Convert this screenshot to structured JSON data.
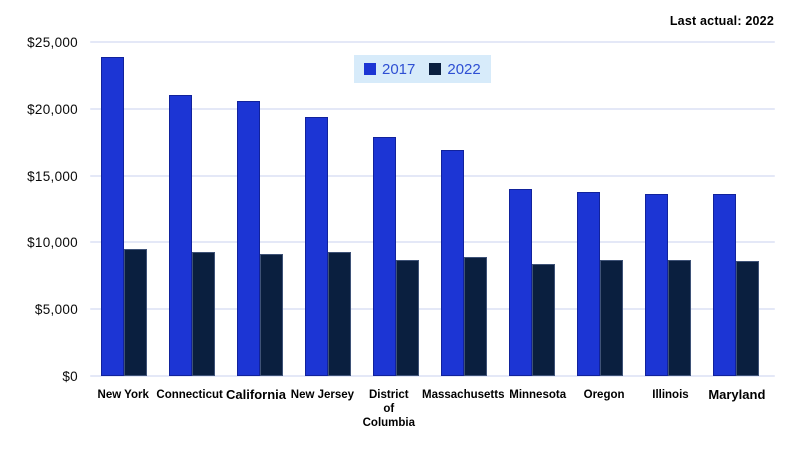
{
  "colors": {
    "series_2017": "#1c35d4",
    "series_2017_edge": "rgba(10,18,110,0.55)",
    "series_2022": "#0a1f3f",
    "series_2022_edge": "rgba(96,116,156,0.6)",
    "legend_background": "#d7ebfa",
    "legend_text": "#2e4fd3",
    "gridline": "#e4e8f7",
    "axis_text": "#0b0b0b"
  },
  "chart_data": {
    "type": "bar",
    "annotation": "Last actual: 2022",
    "categories": [
      "New York",
      "Connecticut",
      "California",
      "New Jersey",
      "District of Columbia",
      "Massachusetts",
      "Minnesota",
      "Oregon",
      "Illinois",
      "Maryland"
    ],
    "category_display": [
      "New York",
      "Connecticut",
      "California",
      "New Jersey",
      "District\nof\nColumbia",
      "Massachusetts",
      "Minnesota",
      "Oregon",
      "Illinois",
      "Maryland"
    ],
    "series": [
      {
        "name": "2017",
        "color": "#1c35d4",
        "edge": "rgba(10,18,110,0.55)",
        "values": [
          23900,
          21000,
          20600,
          19400,
          17900,
          16900,
          14000,
          13800,
          13600,
          13600
        ]
      },
      {
        "name": "2022",
        "color": "#0a1f3f",
        "edge": "rgba(96,116,156,0.6)",
        "values": [
          9500,
          9300,
          9100,
          9300,
          8700,
          8900,
          8400,
          8700,
          8700,
          8600
        ]
      }
    ],
    "ylim": [
      0,
      25000
    ],
    "yticks": [
      {
        "value": 0,
        "label": "$0"
      },
      {
        "value": 5000,
        "label": "$5,000"
      },
      {
        "value": 10000,
        "label": "$10,000"
      },
      {
        "value": 15000,
        "label": "$15,000"
      },
      {
        "value": 20000,
        "label": "$20,000"
      },
      {
        "value": 25000,
        "label": "$25,000"
      }
    ],
    "grid": "horizontal",
    "legend_position": "top-center"
  }
}
